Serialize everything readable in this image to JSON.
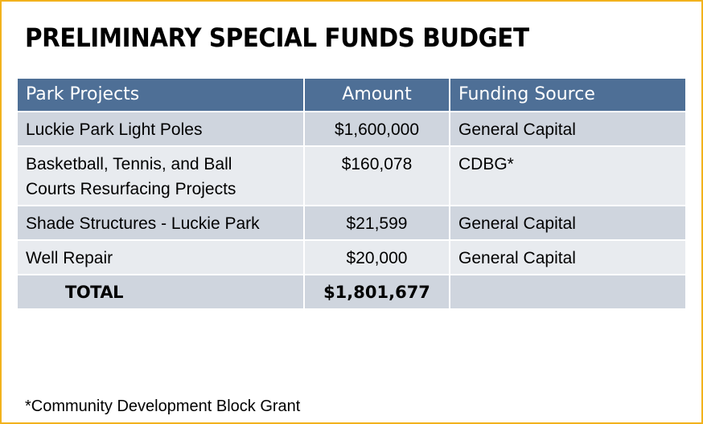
{
  "title": "PRELIMINARY SPECIAL FUNDS BUDGET",
  "table": {
    "headers": [
      "Park Projects",
      "Amount",
      "Funding Source"
    ],
    "rows": [
      {
        "project_line1": "Luckie Park Light Poles",
        "project_line2": "",
        "amount": "$1,600,000",
        "source": "General Capital"
      },
      {
        "project_line1": "Basketball, Tennis, and Ball",
        "project_line2": "Courts Resurfacing Projects",
        "amount": "$160,078",
        "source": "CDBG*"
      },
      {
        "project_line1": "Shade Structures - Luckie Park",
        "project_line2": "",
        "amount": "$21,599",
        "source": "General Capital"
      },
      {
        "project_line1": "Well Repair",
        "project_line2": "",
        "amount": "$20,000",
        "source": "General Capital"
      }
    ],
    "total": {
      "label": "TOTAL",
      "amount": "$1,801,677",
      "source": ""
    }
  },
  "footnote": "*Community Development Block Grant",
  "colors": {
    "header_bg": "#4e6f96",
    "row_dark": "#cfd5de",
    "row_light": "#e8ebef",
    "border_accent": "#f2b21c"
  }
}
